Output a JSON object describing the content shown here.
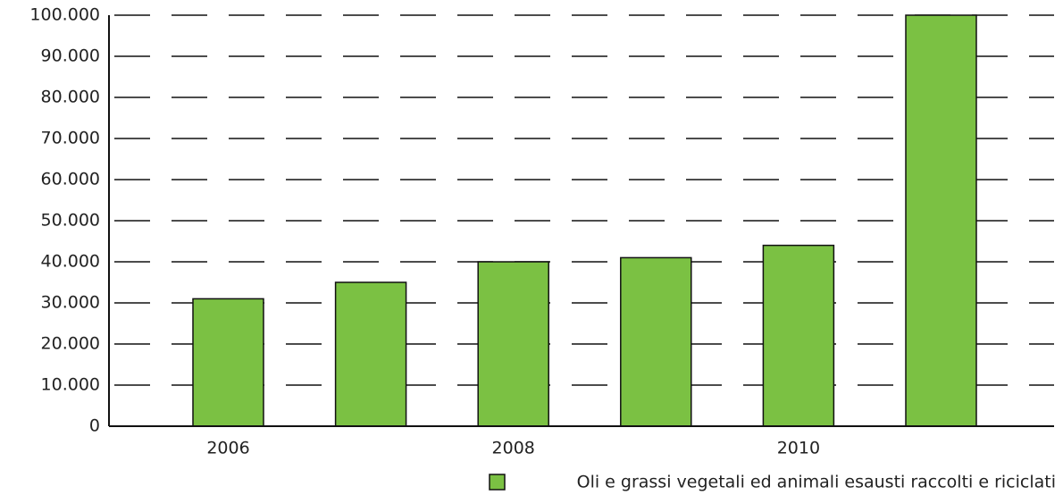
{
  "chart_data": {
    "type": "bar",
    "categories": [
      "2006",
      null,
      "2008",
      null,
      "2010",
      null
    ],
    "series": [
      {
        "name": "Oli e grassi vegetali ed animali esausti raccolti e riciclati",
        "color": "#7bc143",
        "values": [
          31000,
          35000,
          40000,
          41000,
          44000,
          100000
        ]
      }
    ],
    "ylim": [
      0,
      100000
    ],
    "yticks": [
      0,
      {
        "value": 10000,
        "label": "10.000"
      },
      {
        "value": 20000,
        "label": "20.000"
      },
      {
        "value": 30000,
        "label": "30.000"
      },
      {
        "value": 40000,
        "label": "40.000"
      },
      {
        "value": 50000,
        "label": "50.000"
      },
      {
        "value": 60000,
        "label": "60.000"
      },
      {
        "value": 70000,
        "label": "70.000"
      },
      {
        "value": 80000,
        "label": "80.000"
      },
      {
        "value": 90000,
        "label": "90.000"
      },
      {
        "value": 100000,
        "label": "100.000"
      }
    ],
    "grid": true,
    "legend": "bottom-right"
  }
}
